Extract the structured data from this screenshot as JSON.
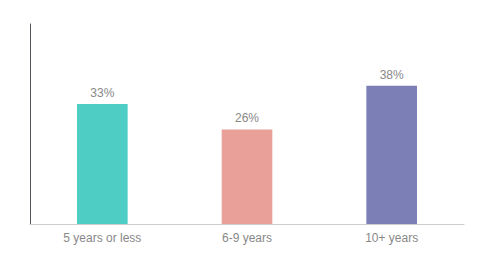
{
  "chart_data": {
    "type": "bar",
    "categories": [
      "5 years or less",
      "6-9 years",
      "10+ years"
    ],
    "values": [
      33,
      26,
      38
    ],
    "value_labels": [
      "33%",
      "26%",
      "38%"
    ],
    "colors": [
      "#4ecdc4",
      "#e8a098",
      "#7b7fb5"
    ],
    "ylim": [
      0,
      55
    ],
    "yticks": [],
    "grid": false,
    "data_labels": true,
    "tick_labels": "x"
  }
}
